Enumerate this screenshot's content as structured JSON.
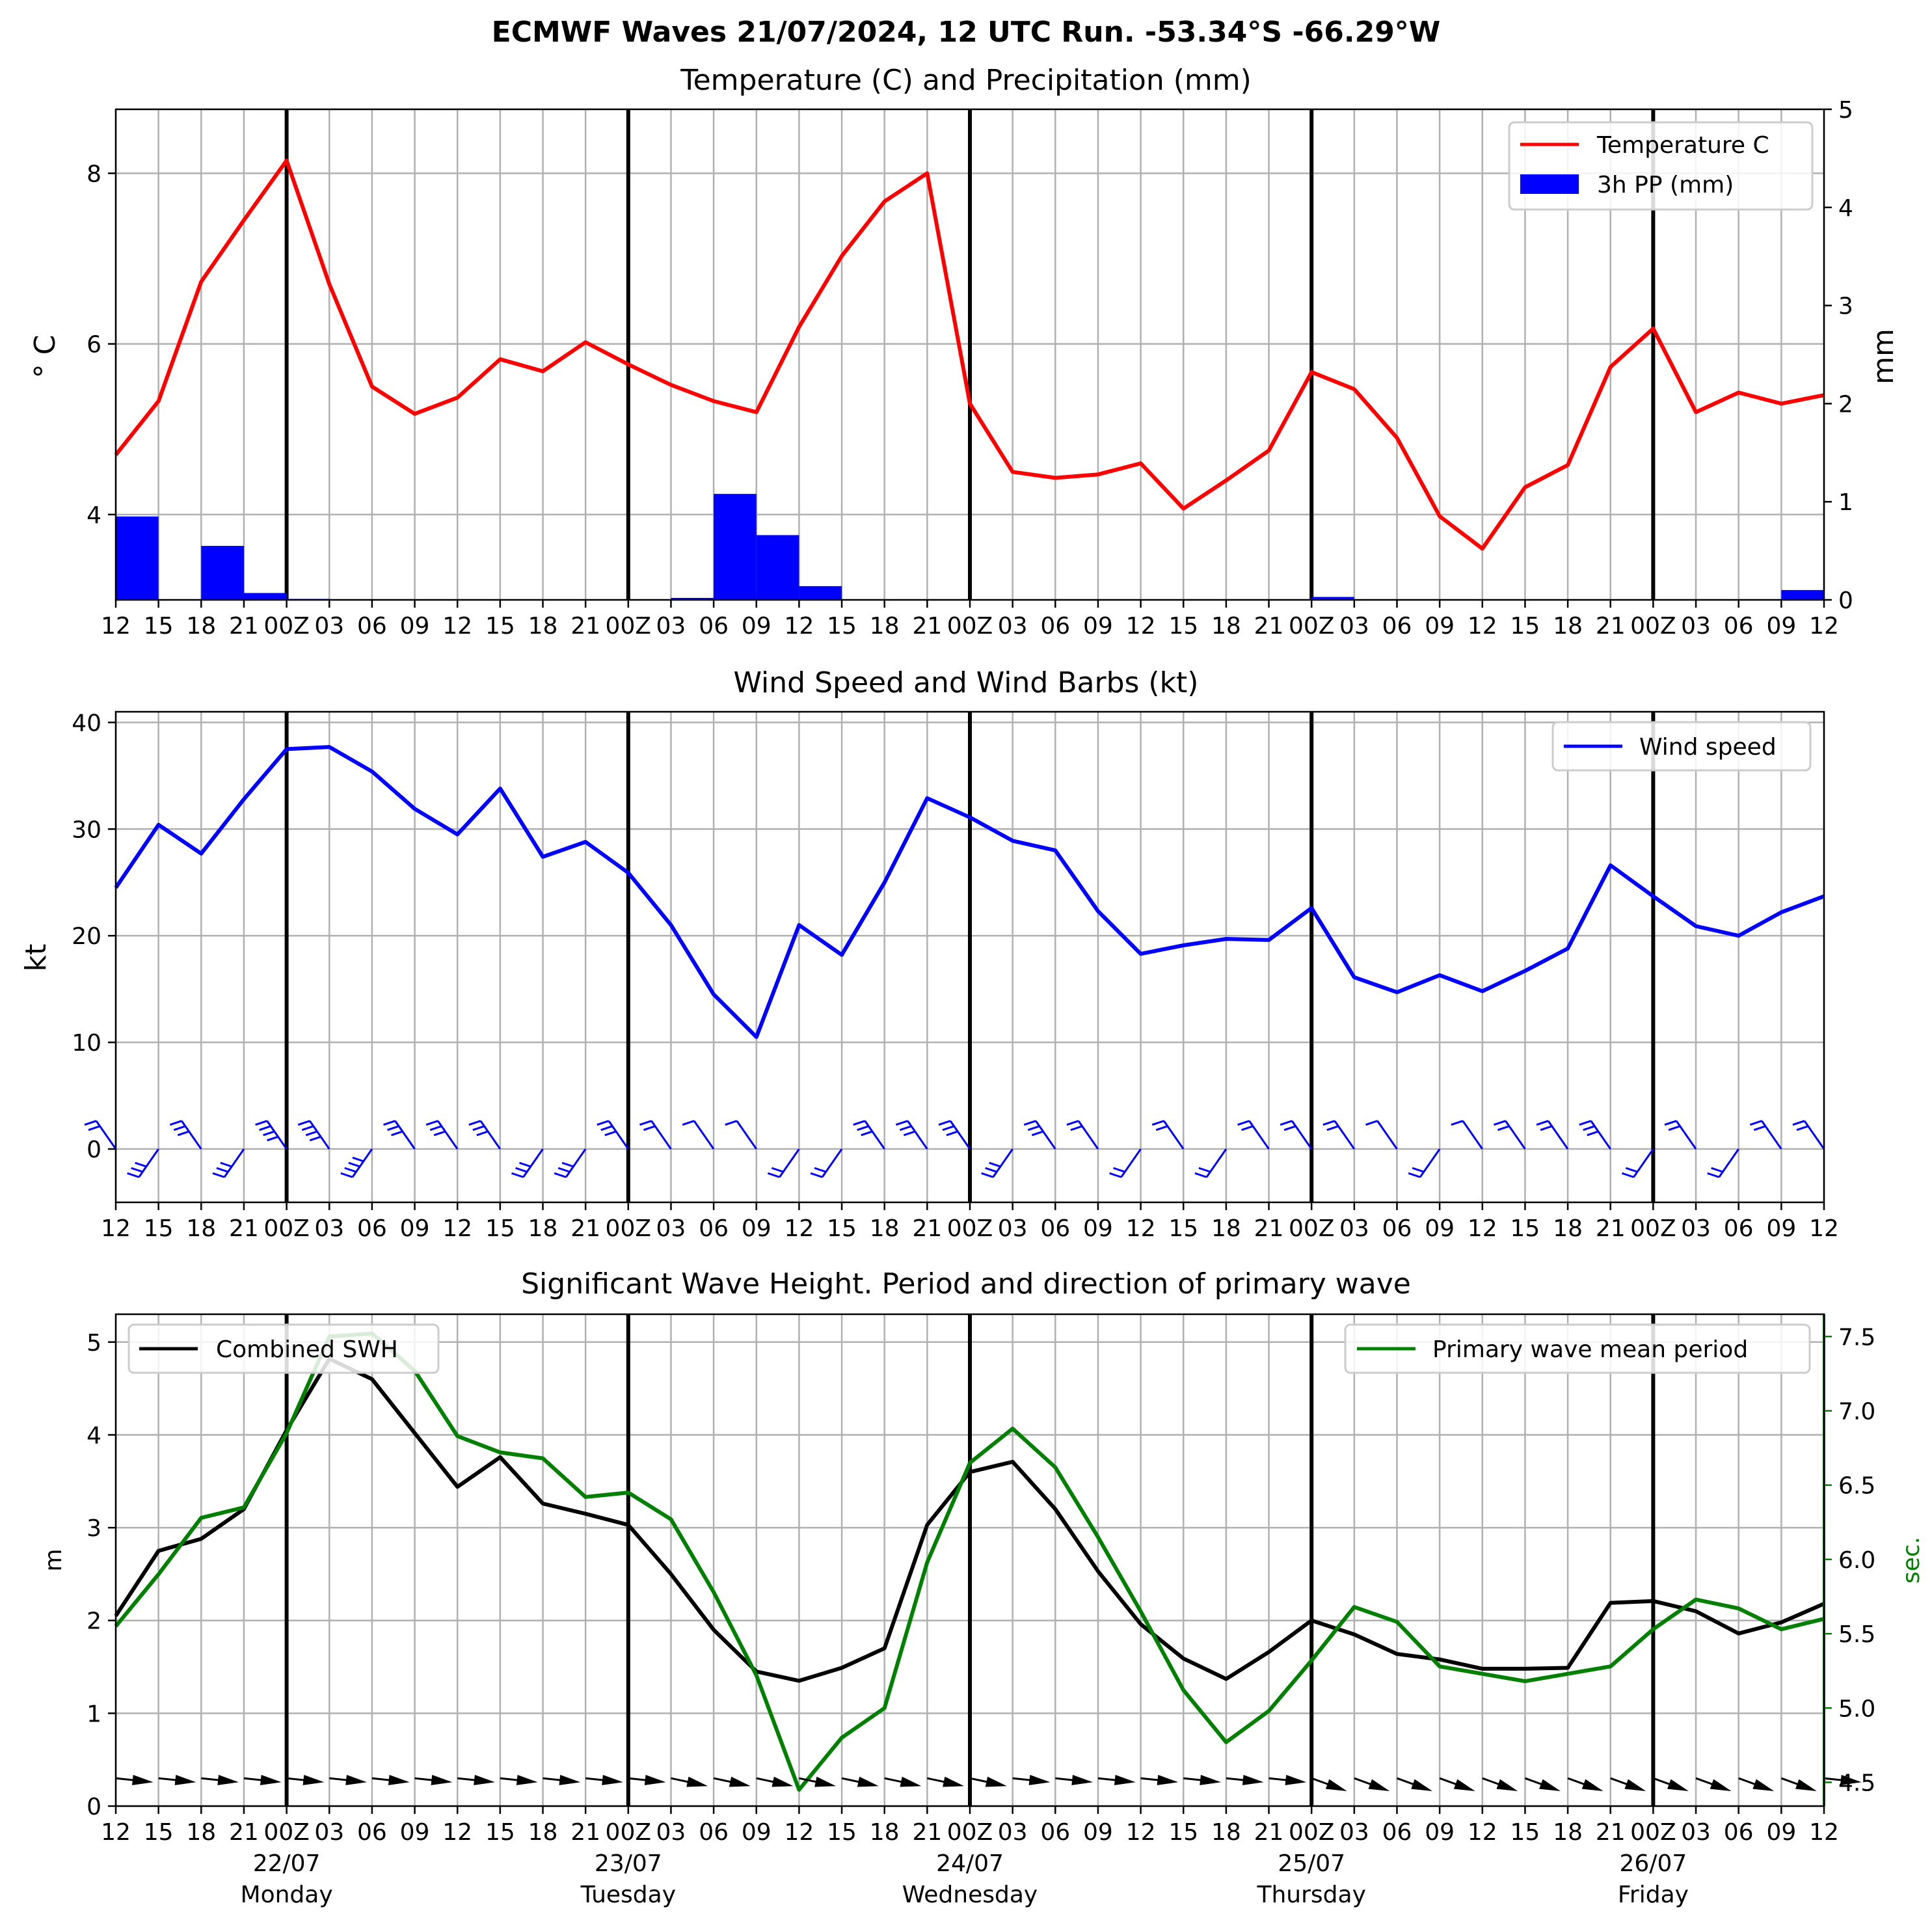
{
  "title": "ECMWF Waves 21/07/2024, 12 UTC Run. -53.34°S -66.29°W",
  "x_tick_labels": [
    "12",
    "15",
    "18",
    "21",
    "00Z",
    "03",
    "06",
    "09",
    "12",
    "15",
    "18",
    "21",
    "00Z",
    "03",
    "06",
    "09",
    "12",
    "15",
    "18",
    "21",
    "00Z",
    "03",
    "06",
    "09",
    "12",
    "15",
    "18",
    "21",
    "00Z",
    "03",
    "06",
    "09",
    "12",
    "15",
    "18",
    "21",
    "00Z",
    "03",
    "06",
    "09",
    "12"
  ],
  "day_labels": [
    {
      "date": "22/07",
      "day": "Monday"
    },
    {
      "date": "23/07",
      "day": "Tuesday"
    },
    {
      "date": "24/07",
      "day": "Wednesday"
    },
    {
      "date": "25/07",
      "day": "Thursday"
    },
    {
      "date": "26/07",
      "day": "Friday"
    }
  ],
  "colors": {
    "temperature": "#ff0000",
    "precipitation": "#0000ff",
    "wind": "#0000ff",
    "swh": "#000000",
    "period": "#008000",
    "grid": "#b0b0b0"
  },
  "chart_data": [
    {
      "type": "line",
      "title": "Temperature (C) and Precipitation (mm)",
      "ylabel": "° C",
      "ylabel_right": "mm",
      "ylim": [
        3.0,
        8.75
      ],
      "ylim_right": [
        0,
        5
      ],
      "yticks": [
        4,
        6,
        8
      ],
      "yticks_right": [
        0,
        1,
        2,
        3,
        4,
        5
      ],
      "legend_position": "top-right",
      "grid": true,
      "series": [
        {
          "name": "Temperature C",
          "axis": "left",
          "values": [
            4.7,
            5.33,
            6.73,
            7.45,
            8.15,
            6.7,
            5.5,
            5.18,
            5.37,
            5.82,
            5.68,
            6.02,
            5.76,
            5.52,
            5.33,
            5.2,
            6.2,
            7.03,
            7.67,
            8.0,
            5.3,
            4.5,
            4.43,
            4.47,
            4.6,
            4.07,
            4.4,
            4.75,
            5.67,
            5.47,
            4.9,
            3.98,
            3.6,
            4.32,
            4.58,
            5.73,
            6.18,
            5.2,
            5.43,
            5.3,
            5.4
          ]
        },
        {
          "name": "3h PP (mm)",
          "axis": "right",
          "kind": "bar",
          "values": [
            0.85,
            0,
            0.55,
            0.07,
            0.01,
            0,
            0,
            0,
            0,
            0,
            0,
            0,
            0,
            0.02,
            1.08,
            0.66,
            0.14,
            0,
            0,
            0,
            0,
            0,
            0,
            0,
            0,
            0,
            0,
            0,
            0.03,
            0,
            0,
            0,
            0,
            0,
            0,
            0,
            0,
            0,
            0,
            0.1
          ]
        }
      ]
    },
    {
      "type": "line",
      "title": "Wind Speed and Wind Barbs (kt)",
      "ylabel": "kt",
      "ylim": [
        -5,
        41
      ],
      "yticks": [
        0,
        10,
        20,
        30,
        40
      ],
      "legend_position": "top-right",
      "grid": true,
      "series": [
        {
          "name": "Wind speed",
          "values": [
            24.5,
            30.4,
            27.7,
            32.8,
            37.5,
            37.7,
            35.4,
            31.9,
            29.5,
            33.8,
            27.4,
            28.8,
            25.9,
            21.0,
            14.5,
            10.5,
            21.0,
            18.2,
            25.0,
            32.9,
            31.1,
            28.9,
            28.0,
            22.3,
            18.3,
            19.1,
            19.7,
            19.6,
            22.6,
            16.1,
            14.7,
            16.3,
            14.8,
            16.7,
            18.8,
            26.6,
            23.7,
            20.9,
            20.0,
            22.2,
            23.7
          ]
        }
      ]
    },
    {
      "type": "line",
      "title": "Significant Wave Height. Period and direction of primary wave",
      "ylabel": "m",
      "ylabel_right": "sec.",
      "ylim": [
        0,
        5.3
      ],
      "ylim_right": [
        4.34,
        7.65
      ],
      "yticks": [
        0,
        1,
        2,
        3,
        4,
        5
      ],
      "yticks_right": [
        4.5,
        5.0,
        5.5,
        6.0,
        6.5,
        7.0,
        7.5
      ],
      "grid": true,
      "series": [
        {
          "name": "Combined SWH",
          "axis": "left",
          "legend_position": "top-left",
          "values": [
            2.05,
            2.75,
            2.88,
            3.2,
            4.05,
            4.82,
            4.6,
            4.02,
            3.44,
            3.76,
            3.26,
            3.15,
            3.03,
            2.5,
            1.9,
            1.45,
            1.35,
            1.49,
            1.7,
            3.03,
            3.6,
            3.71,
            3.2,
            2.53,
            1.96,
            1.59,
            1.37,
            1.66,
            2.0,
            1.85,
            1.64,
            1.58,
            1.48,
            1.48,
            1.49,
            2.19,
            2.21,
            2.1,
            1.86,
            1.98,
            2.18
          ]
        },
        {
          "name": "Primary wave mean period",
          "axis": "right",
          "legend_position": "top-right",
          "values": [
            5.55,
            5.9,
            6.28,
            6.35,
            6.85,
            7.5,
            7.52,
            7.27,
            6.83,
            6.72,
            6.68,
            6.42,
            6.45,
            6.27,
            5.78,
            5.22,
            4.45,
            4.8,
            5.0,
            5.98,
            6.65,
            6.88,
            6.62,
            6.15,
            5.65,
            5.12,
            4.77,
            4.98,
            5.32,
            5.68,
            5.58,
            5.28,
            5.23,
            5.18,
            5.23,
            5.28,
            5.53,
            5.73,
            5.67,
            5.53,
            5.6
          ]
        }
      ]
    }
  ]
}
